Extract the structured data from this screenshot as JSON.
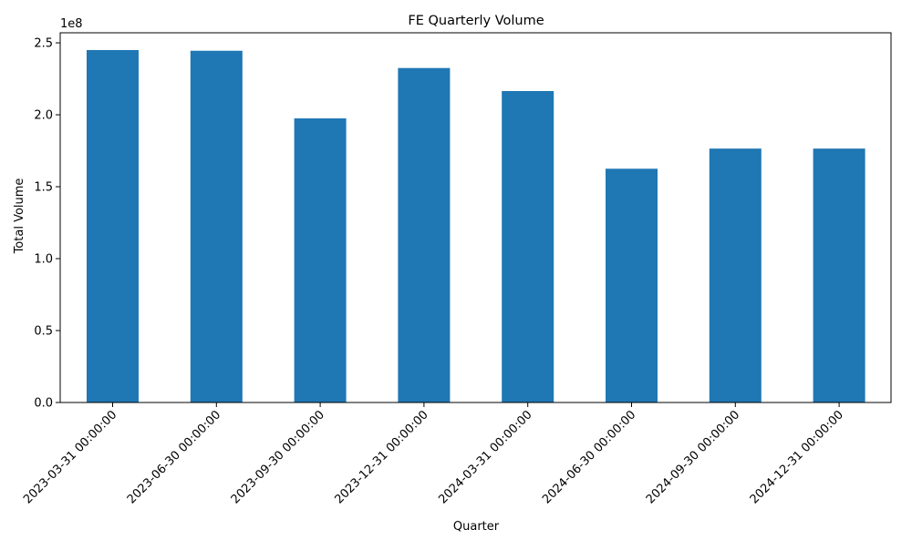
{
  "chart_data": {
    "type": "bar",
    "title": "FE Quarterly Volume",
    "xlabel": "Quarter",
    "ylabel": "Total Volume",
    "y_offset_label": "1e8",
    "y_scale_factor": 100000000,
    "ylim": [
      0,
      257000000
    ],
    "yticks": [
      0,
      50000000,
      100000000,
      150000000,
      200000000,
      250000000
    ],
    "ytick_labels": [
      "0.0",
      "0.5",
      "1.0",
      "1.5",
      "2.0",
      "2.5"
    ],
    "categories": [
      "2023-03-31 00:00:00",
      "2023-06-30 00:00:00",
      "2023-09-30 00:00:00",
      "2023-12-31 00:00:00",
      "2024-03-31 00:00:00",
      "2024-06-30 00:00:00",
      "2024-09-30 00:00:00",
      "2024-12-31 00:00:00"
    ],
    "values": [
      245000000,
      244500000,
      197500000,
      232500000,
      216500000,
      162500000,
      176500000,
      176500000
    ],
    "bar_color": "#1f77b4",
    "grid": false,
    "legend": "none"
  }
}
